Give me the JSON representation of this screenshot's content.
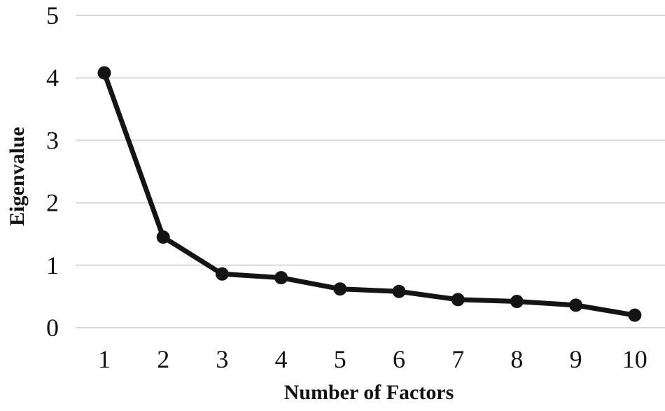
{
  "figure": {
    "background": "#ffffff"
  },
  "chart_data": {
    "type": "line",
    "title": "",
    "xlabel": "Number of Factors",
    "ylabel": "Eigenvalue",
    "categories": [
      "1",
      "2",
      "3",
      "4",
      "5",
      "6",
      "7",
      "8",
      "9",
      "10"
    ],
    "x": [
      1,
      2,
      3,
      4,
      5,
      6,
      7,
      8,
      9,
      10
    ],
    "series": [
      {
        "name": "Eigenvalue",
        "values": [
          4.08,
          1.45,
          0.86,
          0.8,
          0.62,
          0.58,
          0.45,
          0.42,
          0.36,
          0.2
        ]
      }
    ],
    "yticks": [
      "0",
      "1",
      "2",
      "3",
      "4",
      "5"
    ],
    "ylim": [
      0,
      5
    ],
    "xlim": [
      1,
      10
    ],
    "grid": "horizontal-only",
    "legend": "none",
    "marker": "filled-circle",
    "colors": {
      "line": "#141414",
      "marker": "#141414",
      "gridline": "#d9d9d9",
      "text": "#121212",
      "background": "#ffffff"
    }
  }
}
